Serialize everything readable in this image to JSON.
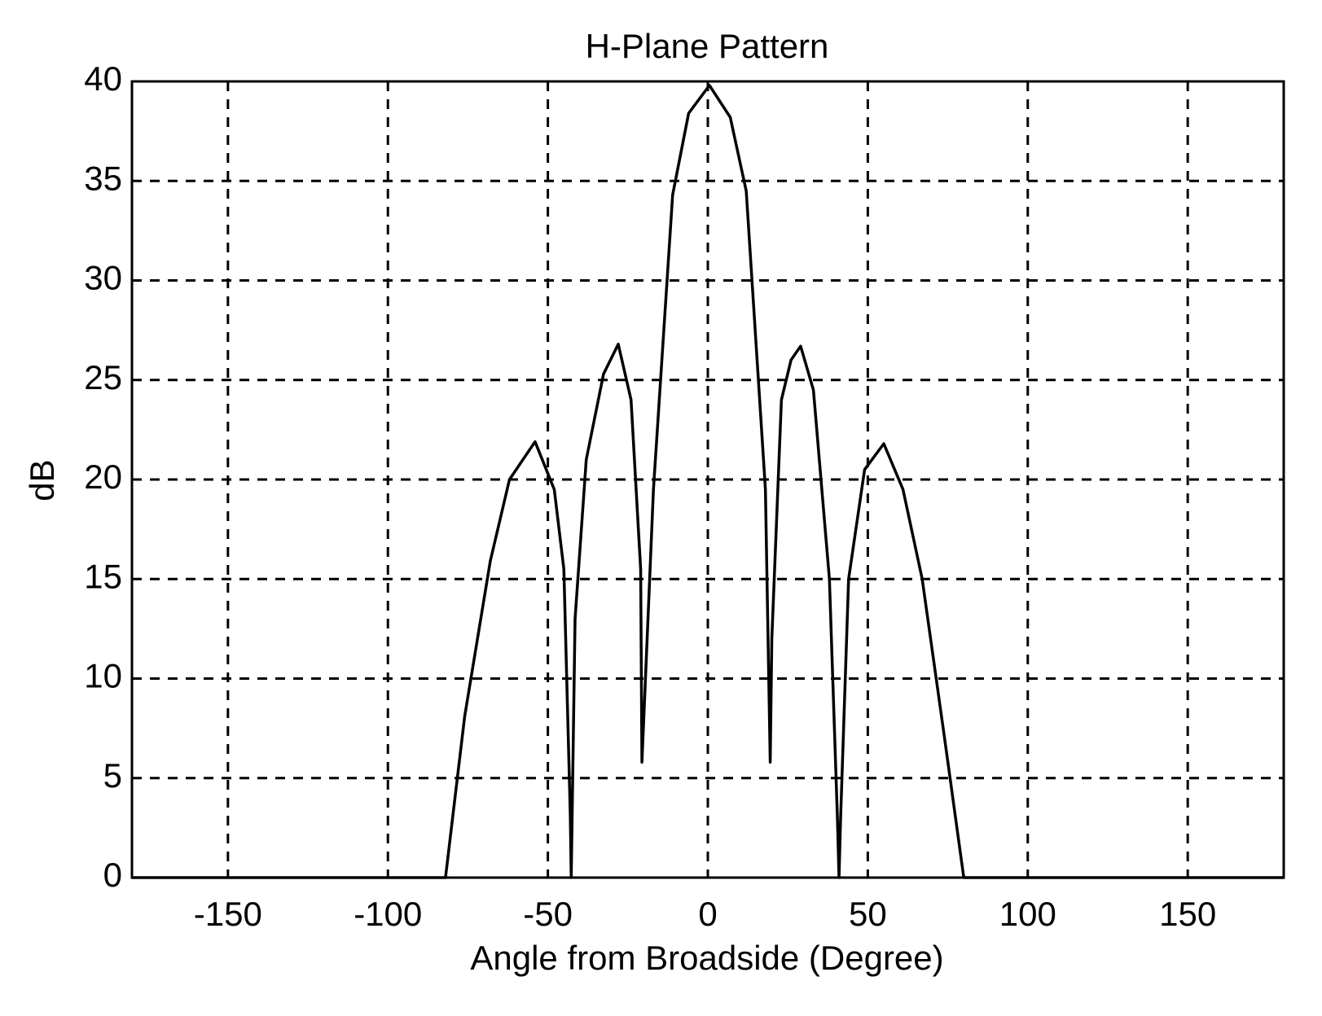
{
  "chart_data": {
    "type": "line",
    "title": "H-Plane Pattern",
    "x_label": "Angle from Broadside (Degree)",
    "y_label": "dB",
    "x": [
      -180,
      -82,
      -76,
      -68,
      -62,
      -54,
      -48,
      -45,
      -43,
      -42.7,
      -41.5,
      -38,
      -32.6,
      -28,
      -24,
      -21,
      -20.6,
      -17,
      -11,
      -6,
      0.5,
      7,
      12,
      18,
      19.5,
      20,
      23,
      26,
      29,
      33,
      38,
      40.5,
      41,
      41.5,
      44,
      49,
      55,
      61,
      67,
      74,
      80,
      180
    ],
    "series": [
      {
        "name": "pattern",
        "color": "#000000",
        "values": [
          0,
          0,
          8.1,
          15.9,
          20,
          21.9,
          19.5,
          15.5,
          3.2,
          0,
          13,
          21,
          25.3,
          26.8,
          24,
          15.5,
          5.8,
          19.5,
          34.3,
          38.4,
          39.8,
          38.2,
          34.5,
          19.5,
          5.8,
          12,
          24,
          26,
          26.7,
          24.5,
          15,
          3,
          0,
          3,
          15,
          20.5,
          21.8,
          19.5,
          15,
          7,
          0,
          0
        ]
      }
    ],
    "xlim": [
      -180,
      180
    ],
    "ylim": [
      0,
      40
    ],
    "xticks": [
      -150,
      -100,
      -50,
      0,
      50,
      100,
      150
    ],
    "yticks": [
      0,
      5,
      10,
      15,
      20,
      25,
      30,
      35,
      40
    ],
    "grid": true
  }
}
